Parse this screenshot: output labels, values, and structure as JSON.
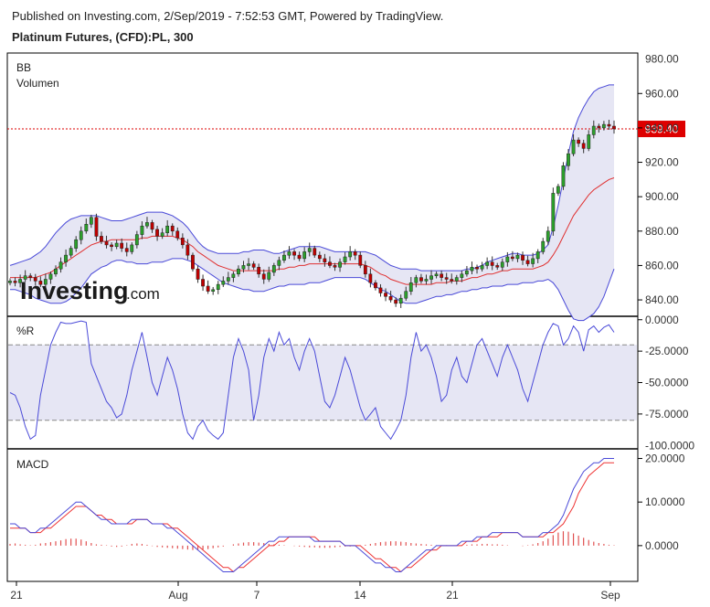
{
  "header": {
    "published": "Published on Investing.com, 2/Sep/2019 - 7:52:53 GMT, Powered by TradingView.",
    "instrument": "Platinum Futures, (CFD):PL, 300"
  },
  "logo": {
    "main": "Investing",
    "suffix": ".com"
  },
  "colors": {
    "up": "#2ca02c",
    "down": "#c00000",
    "band_line": "#4a4ad8",
    "band_fill": "#e6e6f4",
    "basis": "#e03030",
    "price_line": "#dd0000",
    "macd": "#4a4ad8",
    "signal": "#ee3333",
    "hist": "#e05050"
  },
  "chart_data": [
    {
      "type": "candlestick",
      "panel": "price",
      "indicators": [
        "BB",
        "Volumen"
      ],
      "yticks": [
        "960.00",
        "940.00",
        "920.00",
        "900.00",
        "880.00",
        "860.00",
        "840.00"
      ],
      "top_tick_partial": "980.00",
      "ylim": [
        831,
        983
      ],
      "last_price": 939.4,
      "last_price_label": "939.40",
      "xtick_labels": [
        "21",
        "Aug",
        "7",
        "14",
        "21",
        "Sep"
      ],
      "close": [
        851,
        850,
        852,
        854,
        853,
        851,
        849,
        852,
        855,
        858,
        862,
        866,
        870,
        875,
        880,
        884,
        888,
        877,
        874,
        872,
        871,
        873,
        870,
        868,
        872,
        878,
        883,
        885,
        881,
        877,
        879,
        883,
        880,
        876,
        872,
        866,
        858,
        852,
        848,
        845,
        846,
        849,
        851,
        853,
        855,
        858,
        860,
        861,
        859,
        855,
        852,
        856,
        860,
        863,
        866,
        868,
        866,
        864,
        868,
        870,
        866,
        864,
        862,
        860,
        859,
        862,
        865,
        868,
        866,
        860,
        855,
        850,
        847,
        844,
        842,
        840,
        838,
        841,
        845,
        850,
        853,
        851,
        852,
        854,
        855,
        853,
        852,
        851,
        853,
        855,
        857,
        859,
        858,
        860,
        862,
        860,
        859,
        862,
        865,
        864,
        866,
        863,
        861,
        864,
        868,
        874,
        880,
        902,
        906,
        918,
        925,
        933,
        931,
        928,
        936,
        941,
        940,
        942,
        941,
        939.4
      ],
      "bb_upper": [
        860,
        861,
        862,
        863,
        864,
        866,
        868,
        871,
        875,
        879,
        882,
        885,
        887,
        888,
        889,
        889,
        889,
        889,
        888,
        887,
        886,
        886,
        886,
        887,
        888,
        889,
        890,
        891,
        891,
        891,
        891,
        890,
        889,
        887,
        885,
        882,
        878,
        874,
        871,
        869,
        868,
        867,
        867,
        867,
        867,
        867,
        868,
        868,
        869,
        869,
        869,
        868,
        867,
        867,
        868,
        869,
        870,
        871,
        871,
        871,
        871,
        871,
        870,
        869,
        868,
        868,
        868,
        868,
        868,
        868,
        868,
        867,
        866,
        864,
        862,
        860,
        859,
        858,
        858,
        858,
        858,
        857,
        857,
        857,
        857,
        857,
        857,
        857,
        857,
        857,
        858,
        858,
        859,
        860,
        862,
        863,
        864,
        865,
        866,
        867,
        867,
        866,
        866,
        866,
        867,
        869,
        872,
        882,
        895,
        910,
        925,
        938,
        946,
        952,
        957,
        961,
        963,
        964,
        965,
        965
      ],
      "bb_basis": [
        853,
        853,
        853,
        853,
        853,
        853,
        854,
        855,
        856,
        858,
        860,
        862,
        864,
        866,
        868,
        870,
        872,
        873,
        874,
        874,
        875,
        875,
        875,
        875,
        875,
        875,
        876,
        876,
        877,
        877,
        877,
        877,
        877,
        876,
        875,
        873,
        871,
        868,
        866,
        864,
        862,
        860,
        859,
        858,
        857,
        857,
        857,
        857,
        857,
        857,
        857,
        857,
        857,
        858,
        858,
        859,
        859,
        860,
        860,
        861,
        861,
        861,
        861,
        861,
        861,
        861,
        861,
        861,
        861,
        861,
        860,
        859,
        857,
        855,
        854,
        852,
        851,
        850,
        849,
        849,
        849,
        849,
        849,
        849,
        850,
        850,
        850,
        851,
        851,
        851,
        852,
        853,
        853,
        854,
        855,
        855,
        856,
        857,
        857,
        858,
        858,
        858,
        858,
        858,
        859,
        860,
        862,
        866,
        871,
        877,
        883,
        889,
        893,
        897,
        901,
        904,
        906,
        908,
        910,
        911
      ],
      "bb_lower": [
        846,
        846,
        845,
        844,
        843,
        841,
        840,
        839,
        838,
        838,
        838,
        839,
        841,
        844,
        847,
        851,
        855,
        857,
        859,
        860,
        862,
        863,
        863,
        862,
        862,
        861,
        861,
        861,
        862,
        862,
        862,
        863,
        864,
        864,
        864,
        863,
        862,
        860,
        858,
        856,
        854,
        852,
        850,
        849,
        848,
        847,
        846,
        846,
        845,
        845,
        845,
        846,
        847,
        848,
        848,
        849,
        849,
        849,
        849,
        850,
        850,
        850,
        851,
        852,
        853,
        853,
        853,
        853,
        853,
        853,
        852,
        850,
        848,
        846,
        845,
        843,
        841,
        839,
        838,
        838,
        838,
        839,
        840,
        841,
        842,
        842,
        843,
        843,
        844,
        845,
        845,
        846,
        846,
        847,
        847,
        848,
        848,
        848,
        849,
        849,
        849,
        850,
        850,
        850,
        851,
        851,
        852,
        850,
        846,
        840,
        834,
        829,
        828,
        828,
        830,
        832,
        836,
        842,
        850,
        858
      ]
    },
    {
      "type": "line",
      "panel": "williams_r",
      "title": "%R",
      "yticks": [
        "0.0000",
        "-25.0000",
        "-50.0000",
        "-75.0000"
      ],
      "bottom_tick_partial": "-100.0000",
      "ylim": [
        -102,
        2
      ],
      "bands": [
        -20,
        -80
      ],
      "values": [
        -58,
        -60,
        -70,
        -85,
        -95,
        -92,
        -60,
        -40,
        -20,
        -10,
        -2,
        -3,
        -3,
        -2,
        -1,
        -2,
        -35,
        -45,
        -55,
        -65,
        -70,
        -78,
        -75,
        -60,
        -40,
        -25,
        -10,
        -30,
        -50,
        -60,
        -45,
        -30,
        -40,
        -55,
        -75,
        -90,
        -95,
        -85,
        -80,
        -88,
        -92,
        -95,
        -90,
        -60,
        -30,
        -15,
        -25,
        -40,
        -80,
        -60,
        -30,
        -15,
        -25,
        -10,
        -20,
        -15,
        -30,
        -40,
        -25,
        -15,
        -25,
        -45,
        -65,
        -70,
        -60,
        -45,
        -30,
        -40,
        -55,
        -70,
        -80,
        -75,
        -70,
        -85,
        -90,
        -95,
        -88,
        -80,
        -60,
        -30,
        -10,
        -25,
        -20,
        -30,
        -45,
        -65,
        -60,
        -40,
        -30,
        -45,
        -50,
        -35,
        -20,
        -15,
        -25,
        -35,
        -45,
        -30,
        -20,
        -30,
        -40,
        -55,
        -65,
        -50,
        -35,
        -20,
        -10,
        -3,
        -5,
        -20,
        -15,
        -5,
        -10,
        -25,
        -8,
        -5,
        -10,
        -6,
        -4,
        -10
      ]
    },
    {
      "type": "line",
      "panel": "macd",
      "title": "MACD",
      "yticks": [
        "20.0000",
        "10.0000",
        "0.0000"
      ],
      "ylim": [
        -8,
        22
      ],
      "macd": [
        5,
        5,
        4,
        4,
        3,
        3,
        4,
        4,
        5,
        6,
        7,
        8,
        9,
        10,
        10,
        9,
        8,
        7,
        6,
        6,
        5,
        5,
        5,
        5,
        6,
        6,
        6,
        6,
        5,
        5,
        5,
        4,
        4,
        3,
        2,
        1,
        0,
        -1,
        -2,
        -3,
        -4,
        -5,
        -6,
        -6,
        -6,
        -5,
        -4,
        -3,
        -2,
        -1,
        0,
        1,
        1,
        2,
        2,
        2,
        2,
        2,
        2,
        2,
        1,
        1,
        1,
        1,
        1,
        1,
        0,
        0,
        0,
        -1,
        -2,
        -3,
        -4,
        -4,
        -5,
        -5,
        -6,
        -6,
        -5,
        -4,
        -3,
        -2,
        -1,
        -1,
        0,
        0,
        0,
        0,
        0,
        1,
        1,
        1,
        2,
        2,
        2,
        3,
        3,
        3,
        3,
        3,
        3,
        2,
        2,
        2,
        2,
        3,
        3,
        4,
        5,
        7,
        10,
        13,
        15,
        17,
        18,
        19,
        19,
        20,
        20,
        20
      ],
      "signal": [
        4,
        4,
        4,
        4,
        3,
        3,
        3,
        4,
        4,
        5,
        6,
        7,
        8,
        9,
        9,
        9,
        8,
        7,
        7,
        6,
        6,
        5,
        5,
        5,
        5,
        6,
        6,
        6,
        5,
        5,
        5,
        5,
        4,
        4,
        3,
        2,
        1,
        0,
        -1,
        -2,
        -3,
        -4,
        -5,
        -5,
        -6,
        -5,
        -5,
        -4,
        -3,
        -2,
        -1,
        0,
        0,
        1,
        1,
        2,
        2,
        2,
        2,
        2,
        2,
        1,
        1,
        1,
        1,
        1,
        0,
        0,
        0,
        0,
        -1,
        -2,
        -3,
        -3,
        -4,
        -5,
        -5,
        -6,
        -5,
        -5,
        -4,
        -3,
        -2,
        -1,
        -1,
        0,
        0,
        0,
        0,
        0,
        1,
        1,
        1,
        2,
        2,
        2,
        2,
        3,
        3,
        3,
        3,
        2,
        2,
        2,
        2,
        2,
        3,
        3,
        4,
        5,
        7,
        9,
        12,
        14,
        16,
        17,
        18,
        19,
        19,
        19
      ],
      "hist": [
        0.4,
        0.5,
        0.3,
        0.2,
        0.1,
        0.2,
        0.5,
        0.6,
        0.8,
        1,
        1.2,
        1.5,
        1.6,
        1.6,
        1.4,
        1,
        0.6,
        0.3,
        0.2,
        0.1,
        -0.2,
        -0.3,
        -0.2,
        0.1,
        0.4,
        0.5,
        0.4,
        0.2,
        -0.1,
        -0.3,
        -0.4,
        -0.5,
        -0.6,
        -0.7,
        -0.8,
        -0.9,
        -1,
        -1,
        -0.9,
        -0.8,
        -0.6,
        -0.4,
        -0.2,
        0,
        0.3,
        0.5,
        0.7,
        0.8,
        0.8,
        0.7,
        0.6,
        0.4,
        0.3,
        0.2,
        0.1,
        0,
        -0.1,
        -0.2,
        -0.3,
        -0.4,
        -0.4,
        -0.5,
        -0.5,
        -0.5,
        -0.4,
        -0.3,
        -0.2,
        -0.2,
        -0.1,
        0,
        0.2,
        0.4,
        0.6,
        0.8,
        0.9,
        1,
        1,
        0.9,
        0.8,
        0.6,
        0.5,
        0.4,
        0.3,
        0.2,
        0.1,
        0.1,
        0.1,
        0,
        0,
        0.1,
        0.2,
        0.3,
        0.3,
        0.4,
        0.4,
        0.3,
        0.3,
        0.2,
        0.1,
        0,
        0,
        -0.1,
        0.1,
        0.3,
        0.6,
        1,
        1.6,
        2.4,
        3,
        3.3,
        3.2,
        2.8,
        2.3,
        1.8,
        1.3,
        0.9,
        0.6,
        0.4,
        0.2,
        0.1
      ]
    }
  ]
}
